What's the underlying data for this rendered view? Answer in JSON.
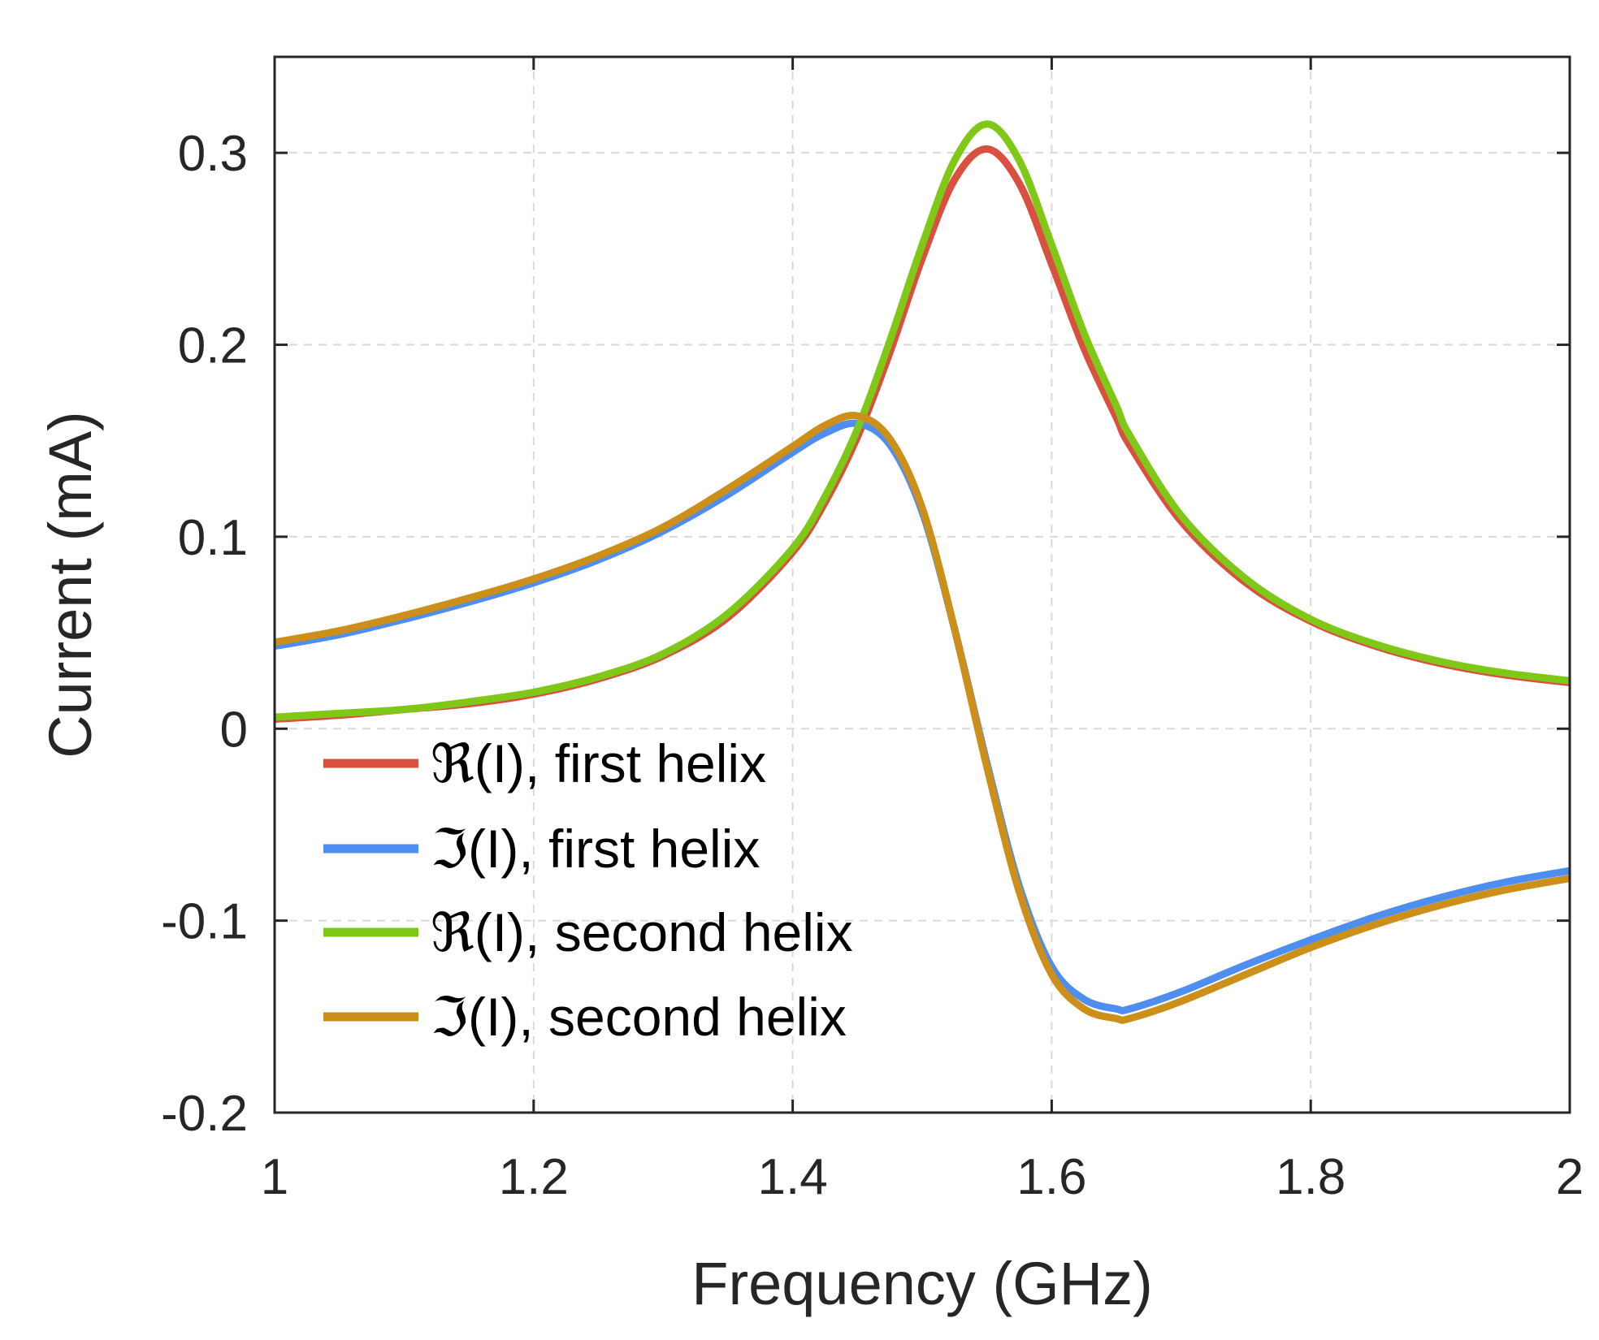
{
  "chart_data": {
    "type": "line",
    "title": "",
    "xlabel": "Frequency (GHz)",
    "ylabel": "Current (mA)",
    "xlim": [
      1,
      2
    ],
    "ylim": [
      -0.2,
      0.35
    ],
    "x_ticks": [
      1,
      1.2,
      1.4,
      1.6,
      1.8,
      2
    ],
    "x_tick_labels": [
      "1",
      "1.2",
      "1.4",
      "1.6",
      "1.8",
      "2"
    ],
    "y_ticks": [
      -0.2,
      -0.1,
      0,
      0.1,
      0.2,
      0.3
    ],
    "y_tick_labels": [
      "-0.2",
      "-0.1",
      "0",
      "0.1",
      "0.2",
      "0.3"
    ],
    "grid": true,
    "legend_position": "lower-left",
    "x": [
      1.0,
      1.05,
      1.1,
      1.15,
      1.2,
      1.25,
      1.3,
      1.35,
      1.4,
      1.425,
      1.45,
      1.475,
      1.5,
      1.525,
      1.55,
      1.575,
      1.6,
      1.625,
      1.65,
      1.66,
      1.7,
      1.75,
      1.8,
      1.85,
      1.9,
      1.95,
      2.0
    ],
    "series": [
      {
        "name": "ℜ(I), first helix",
        "color": "#d95040",
        "values": [
          0.005,
          0.007,
          0.01,
          0.013,
          0.018,
          0.026,
          0.038,
          0.058,
          0.092,
          0.118,
          0.152,
          0.196,
          0.245,
          0.286,
          0.302,
          0.284,
          0.242,
          0.198,
          0.162,
          0.148,
          0.108,
          0.076,
          0.056,
          0.043,
          0.034,
          0.028,
          0.024
        ]
      },
      {
        "name": "ℑ(I), first helix",
        "color": "#4d8ef0",
        "values": [
          0.043,
          0.049,
          0.057,
          0.066,
          0.076,
          0.088,
          0.103,
          0.122,
          0.144,
          0.154,
          0.159,
          0.148,
          0.113,
          0.052,
          -0.018,
          -0.082,
          -0.124,
          -0.141,
          -0.146,
          -0.146,
          -0.137,
          -0.123,
          -0.11,
          -0.098,
          -0.088,
          -0.08,
          -0.074
        ]
      },
      {
        "name": "ℜ(I), second helix",
        "color": "#80c817",
        "values": [
          0.006,
          0.008,
          0.01,
          0.014,
          0.019,
          0.027,
          0.039,
          0.06,
          0.094,
          0.121,
          0.156,
          0.202,
          0.252,
          0.296,
          0.315,
          0.296,
          0.252,
          0.206,
          0.168,
          0.153,
          0.111,
          0.078,
          0.057,
          0.044,
          0.035,
          0.029,
          0.025
        ]
      },
      {
        "name": "ℑ(I), second helix",
        "color": "#cc8f1a",
        "values": [
          0.045,
          0.051,
          0.059,
          0.068,
          0.078,
          0.09,
          0.105,
          0.125,
          0.147,
          0.158,
          0.163,
          0.151,
          0.115,
          0.052,
          -0.02,
          -0.085,
          -0.128,
          -0.146,
          -0.151,
          -0.151,
          -0.142,
          -0.128,
          -0.114,
          -0.102,
          -0.092,
          -0.084,
          -0.078
        ]
      }
    ]
  }
}
